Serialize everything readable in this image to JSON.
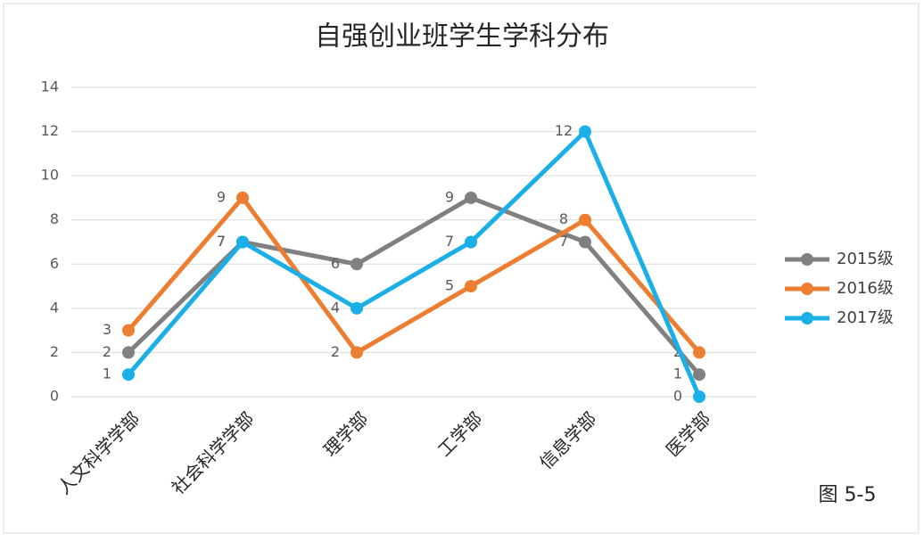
{
  "chart_data": {
    "type": "line",
    "title": "自强创业班学生学科分布",
    "categories": [
      "人文科学学部",
      "社会科学学部",
      "理学部",
      "工学部",
      "信息学部",
      "医学部"
    ],
    "series": [
      {
        "name": "2015级",
        "color": "#808080",
        "values": [
          2,
          7,
          6,
          9,
          7,
          1
        ]
      },
      {
        "name": "2016级",
        "color": "#ed7d31",
        "values": [
          3,
          9,
          2,
          5,
          8,
          2
        ]
      },
      {
        "name": "2017级",
        "color": "#1aafe6",
        "values": [
          1,
          7,
          4,
          7,
          12,
          0
        ]
      }
    ],
    "ylim": [
      0,
      14
    ],
    "yticks": [
      0,
      2,
      4,
      6,
      8,
      10,
      12,
      14
    ],
    "grid": true,
    "legend": "right",
    "annotation": "图 5-5"
  }
}
